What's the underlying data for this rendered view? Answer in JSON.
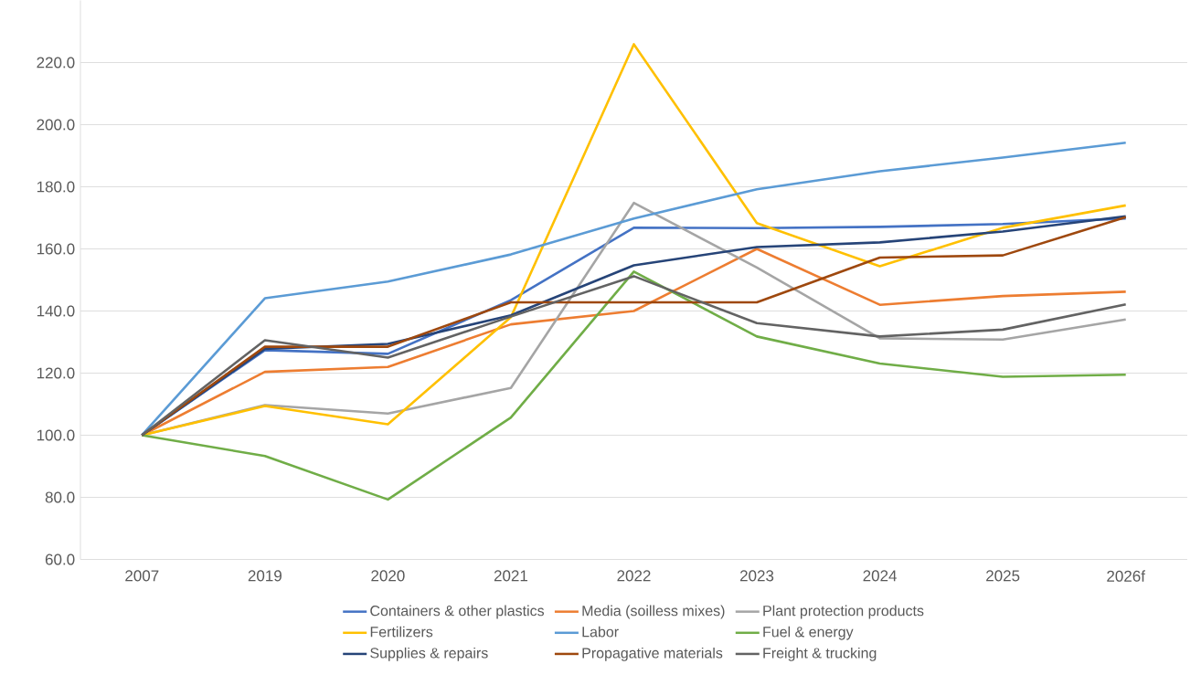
{
  "chart_data": {
    "type": "line",
    "categories": [
      "2007",
      "2019",
      "2020",
      "2021",
      "2022",
      "2023",
      "2024",
      "2025",
      "2026f"
    ],
    "series": [
      {
        "name": "Containers & other plastics",
        "color": "#4472c4",
        "values": [
          100,
          127.4,
          126.2,
          143.5,
          166.8,
          166.7,
          167.1,
          168,
          169.8
        ]
      },
      {
        "name": "Media (soilless mixes)",
        "color": "#ed7d31",
        "values": [
          100,
          120.4,
          122,
          135.7,
          140,
          160,
          142,
          144.8,
          146.2
        ]
      },
      {
        "name": "Plant protection products",
        "color": "#a5a5a5",
        "values": [
          100,
          109.7,
          107,
          115.2,
          174.8,
          154,
          131.2,
          130.8,
          137.3
        ]
      },
      {
        "name": "Fertilizers",
        "color": "#ffc000",
        "values": [
          100,
          109.4,
          103.5,
          138,
          225.9,
          168.3,
          154.4,
          166.8,
          174
        ]
      },
      {
        "name": "Labor",
        "color": "#5b9bd5",
        "values": [
          100,
          144.1,
          149.5,
          158.2,
          169.8,
          179.2,
          185,
          189.4,
          194.2
        ]
      },
      {
        "name": "Fuel & energy",
        "color": "#70ad47",
        "values": [
          100,
          93.3,
          79.3,
          105.7,
          152.7,
          131.8,
          123.1,
          118.8,
          119.5
        ]
      },
      {
        "name": "Supplies & repairs",
        "color": "#264478",
        "values": [
          100,
          127.8,
          129.4,
          138.6,
          154.7,
          160.6,
          162.1,
          165.6,
          170.5
        ]
      },
      {
        "name": "Propagative materials",
        "color": "#9e480e",
        "values": [
          100,
          128.5,
          128.5,
          142.8,
          142.8,
          142.8,
          157.2,
          157.9,
          170.2
        ]
      },
      {
        "name": "Freight & trucking",
        "color": "#636363",
        "values": [
          100,
          130.6,
          125,
          138.2,
          151.2,
          136.1,
          131.8,
          134,
          142.1
        ]
      }
    ],
    "ylim": [
      60,
      240
    ],
    "yticks": [
      {
        "value": 60,
        "label": "60.0"
      },
      {
        "value": 80,
        "label": "80.0"
      },
      {
        "value": 100,
        "label": "100.0"
      },
      {
        "value": 120,
        "label": "120.0"
      },
      {
        "value": 140,
        "label": "140.0"
      },
      {
        "value": 160,
        "label": "160.0"
      },
      {
        "value": 180,
        "label": "180.0"
      },
      {
        "value": 200,
        "label": "200.0"
      },
      {
        "value": 220,
        "label": "220.0"
      }
    ],
    "grid": "y",
    "legend": "bottom"
  }
}
